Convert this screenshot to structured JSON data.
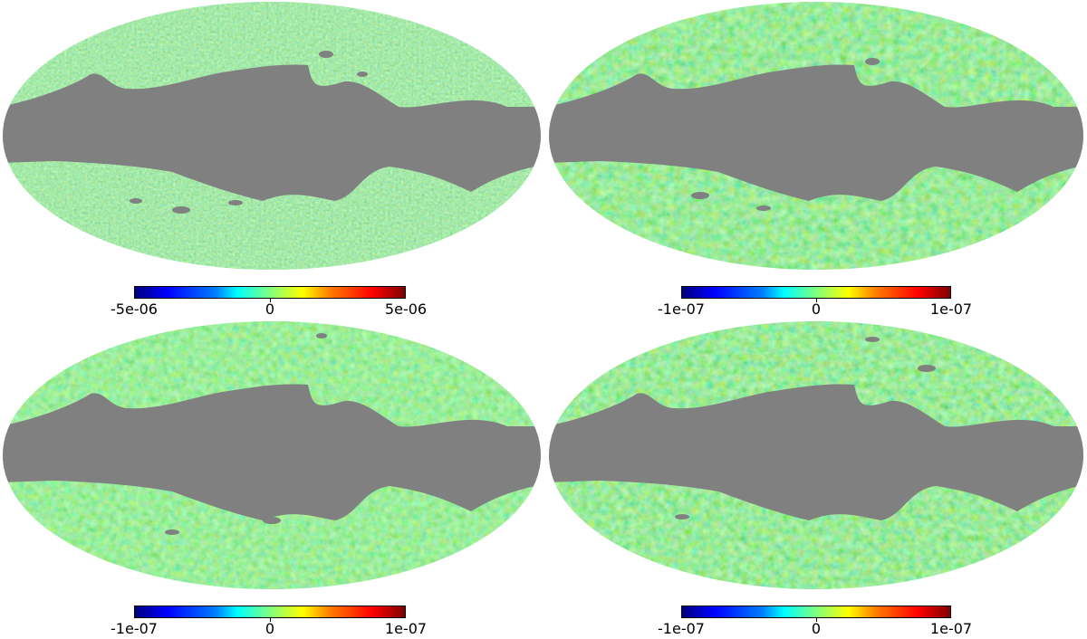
{
  "panels": [
    {
      "id": "top-left",
      "colorbar": {
        "min_label": "-5e-06",
        "mid_label": "0",
        "max_label": "5e-06"
      }
    },
    {
      "id": "top-right",
      "colorbar": {
        "min_label": "-1e-07",
        "mid_label": "0",
        "max_label": "1e-07"
      }
    },
    {
      "id": "bottom-left",
      "colorbar": {
        "min_label": "-1e-07",
        "mid_label": "0",
        "max_label": "1e-07"
      }
    },
    {
      "id": "bottom-right",
      "colorbar": {
        "min_label": "-1e-07",
        "mid_label": "0",
        "max_label": "1e-07"
      }
    }
  ],
  "colors": {
    "mask": "#808080",
    "mid": "#7fff7f"
  }
}
